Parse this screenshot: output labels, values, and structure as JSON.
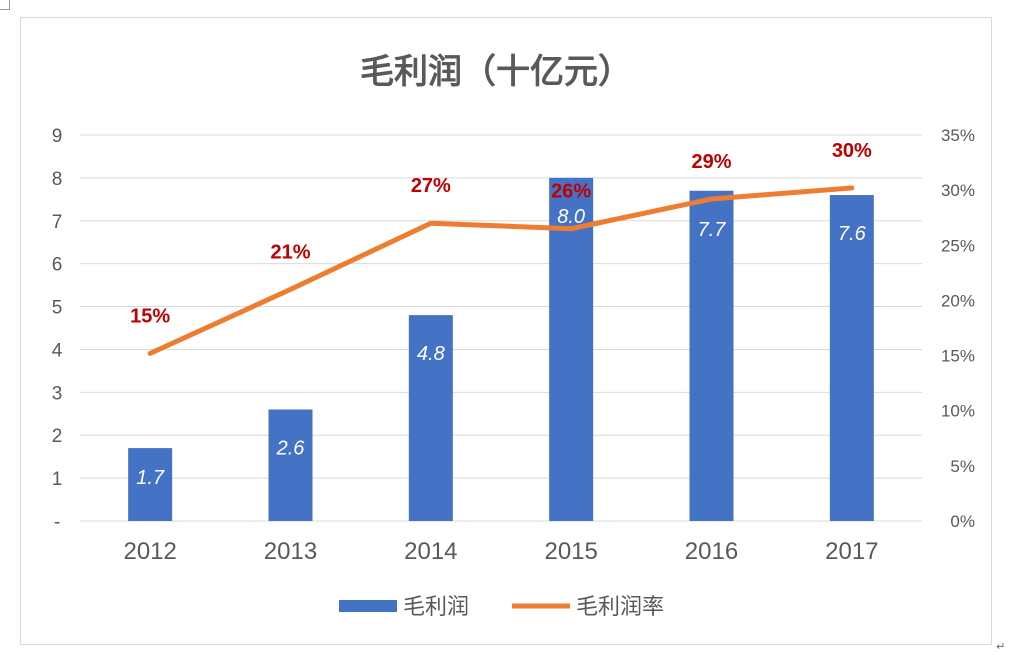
{
  "chart_data": {
    "type": "bar",
    "title": "毛利润（十亿元）",
    "categories": [
      "2012",
      "2013",
      "2014",
      "2015",
      "2016",
      "2017"
    ],
    "series": [
      {
        "name": "毛利润",
        "type": "bar",
        "axis": "left",
        "values": [
          1.7,
          2.6,
          4.8,
          8.0,
          7.7,
          7.6
        ],
        "labels": [
          "1.7",
          "2.6",
          "4.8",
          "8.0",
          "7.7",
          "7.6"
        ],
        "color": "#4472c4"
      },
      {
        "name": "毛利润率",
        "type": "line",
        "axis": "right",
        "values": [
          0.152,
          0.21,
          0.27,
          0.265,
          0.292,
          0.302
        ],
        "labels": [
          "15%",
          "21%",
          "27%",
          "26%",
          "29%",
          "30%"
        ],
        "color": "#ed7d31"
      }
    ],
    "y_left": {
      "ylim": [
        0,
        9
      ],
      "ticks": [
        0,
        1,
        2,
        3,
        4,
        5,
        6,
        7,
        8,
        9
      ],
      "tick_labels": [
        "-",
        "1",
        "2",
        "3",
        "4",
        "5",
        "6",
        "7",
        "8",
        "9"
      ]
    },
    "y_right": {
      "ylim": [
        0,
        0.35
      ],
      "ticks": [
        0,
        0.05,
        0.1,
        0.15,
        0.2,
        0.25,
        0.3,
        0.35
      ],
      "tick_labels": [
        "0%",
        "5%",
        "10%",
        "15%",
        "20%",
        "25%",
        "30%",
        "35%"
      ]
    },
    "grid": true,
    "legend": "bottom",
    "label_color": "#c00000"
  }
}
